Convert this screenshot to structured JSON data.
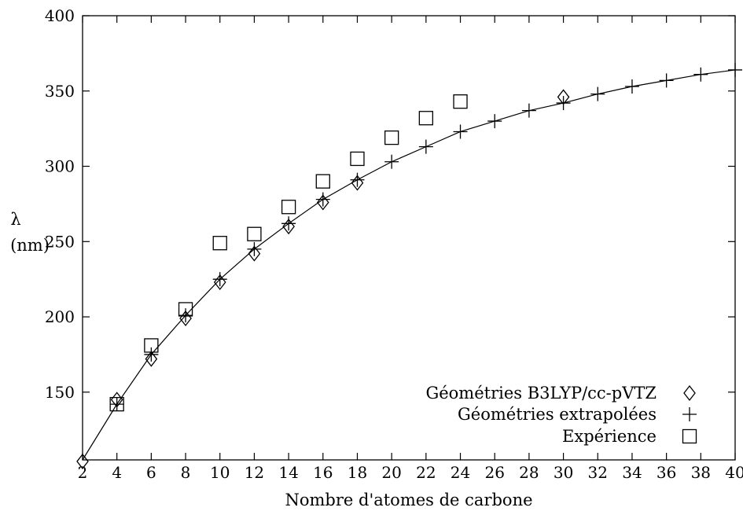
{
  "chart_data": {
    "type": "scatter",
    "xlabel": "Nombre d'atomes de carbone",
    "ylabel_symbol": "λ",
    "ylabel_unit": "(nm)",
    "xlim": [
      2,
      40
    ],
    "ylim": [
      105,
      400
    ],
    "xticks": [
      2,
      4,
      6,
      8,
      10,
      12,
      14,
      16,
      18,
      20,
      22,
      24,
      26,
      28,
      30,
      32,
      34,
      36,
      38,
      40
    ],
    "yticks": [
      150,
      200,
      250,
      300,
      350,
      400
    ],
    "grid": false,
    "legend_position": "bottom-right",
    "series": [
      {
        "name": "Géométries B3LYP/cc-pVTZ",
        "marker": "diamond",
        "x": [
          2,
          4,
          6,
          8,
          10,
          12,
          14,
          16,
          18,
          30
        ],
        "y": [
          104,
          145,
          172,
          199,
          223,
          242,
          260,
          276,
          289,
          346
        ]
      },
      {
        "name": "Géométries extrapolées",
        "marker": "plus",
        "x": [
          4,
          6,
          8,
          10,
          12,
          14,
          16,
          18,
          20,
          22,
          24,
          26,
          28,
          30,
          32,
          34,
          36,
          38,
          40
        ],
        "y": [
          142,
          175,
          201,
          225,
          245,
          262,
          278,
          291,
          303,
          313,
          323,
          330,
          337,
          342,
          348,
          353,
          357,
          361,
          364
        ]
      },
      {
        "name": "Expérience",
        "marker": "square",
        "x": [
          4,
          6,
          8,
          10,
          12,
          14,
          16,
          18,
          20,
          22,
          24
        ],
        "y": [
          142,
          181,
          205,
          249,
          255,
          273,
          290,
          305,
          319,
          332,
          343
        ]
      }
    ],
    "fit_curve": {
      "x": [
        2,
        4,
        6,
        8,
        10,
        12,
        14,
        16,
        18,
        20,
        22,
        24,
        26,
        28,
        30,
        32,
        34,
        36,
        38,
        40
      ],
      "y": [
        105,
        142,
        175,
        201,
        225,
        245,
        262,
        278,
        291,
        303,
        313,
        323,
        330,
        337,
        342,
        348,
        353,
        357,
        361,
        364
      ]
    }
  }
}
